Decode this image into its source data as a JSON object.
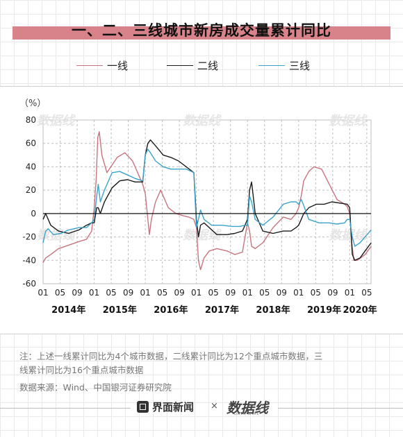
{
  "header": {
    "title": "一、二、三线城市新房成交量累计同比"
  },
  "colors": {
    "series1": "#c8737d",
    "series2": "#1a1a1a",
    "series3": "#3aa3c9",
    "title_bar": "#d8828a"
  },
  "chart_data": {
    "type": "line",
    "title": "一、二、三线城市新房成交量累计同比",
    "ylabel": "（%）",
    "ylim": [
      -60,
      80
    ],
    "yticks": [
      "80",
      "60",
      "40",
      "20",
      "0",
      "-20",
      "-40",
      "-60"
    ],
    "xlim": [
      2014.0,
      2020.4167
    ],
    "x_month_ticks": [
      "01",
      "05",
      "09",
      "01",
      "05",
      "09",
      "01",
      "05",
      "09",
      "01",
      "05",
      "09",
      "01",
      "05",
      "09",
      "01",
      "05",
      "09",
      "01",
      "05"
    ],
    "year_labels": [
      "2014年",
      "2015年",
      "2016年",
      "2017年",
      "2018年",
      "2019年",
      "2020年"
    ],
    "legend": "top",
    "grid": true,
    "series": [
      {
        "name": "一线",
        "x": [
          2014.0,
          2014.05,
          2014.15,
          2014.3,
          2014.5,
          2014.7,
          2014.85,
          2014.95,
          2015.0,
          2015.04,
          2015.07,
          2015.1,
          2015.15,
          2015.25,
          2015.45,
          2015.6,
          2015.75,
          2015.85,
          2015.95,
          2016.0,
          2016.05,
          2016.08,
          2016.12,
          2016.2,
          2016.3,
          2016.45,
          2016.6,
          2016.75,
          2016.85,
          2016.95,
          2017.0,
          2017.04,
          2017.08,
          2017.15,
          2017.25,
          2017.4,
          2017.6,
          2017.75,
          2017.9,
          2017.95,
          2018.0,
          2018.04,
          2018.08,
          2018.15,
          2018.3,
          2018.5,
          2018.7,
          2018.85,
          2018.95,
          2019.0,
          2019.05,
          2019.1,
          2019.2,
          2019.3,
          2019.45,
          2019.6,
          2019.75,
          2019.9,
          2019.95,
          2020.0,
          2020.04,
          2020.08,
          2020.15,
          2020.3,
          2020.42
        ],
        "y": [
          -42,
          -38,
          -35,
          -30,
          -27,
          -24,
          -22,
          -15,
          5,
          30,
          65,
          70,
          50,
          35,
          48,
          52,
          45,
          35,
          25,
          17,
          -5,
          -18,
          -5,
          10,
          20,
          5,
          0,
          -2,
          -3,
          -5,
          -12,
          -40,
          -48,
          -38,
          -32,
          -30,
          -32,
          -35,
          -33,
          -20,
          -8,
          -15,
          -28,
          -30,
          -25,
          -12,
          -3,
          -5,
          0,
          5,
          15,
          28,
          36,
          40,
          38,
          25,
          12,
          8,
          6,
          0,
          -25,
          -40,
          -40,
          -35,
          -28
        ]
      },
      {
        "name": "二线",
        "x": [
          2014.0,
          2014.05,
          2014.1,
          2014.15,
          2014.3,
          2014.5,
          2014.7,
          2014.85,
          2014.95,
          2015.0,
          2015.05,
          2015.08,
          2015.12,
          2015.2,
          2015.35,
          2015.5,
          2015.65,
          2015.8,
          2015.95,
          2016.0,
          2016.05,
          2016.1,
          2016.2,
          2016.35,
          2016.5,
          2016.65,
          2016.8,
          2016.95,
          2017.0,
          2017.04,
          2017.08,
          2017.15,
          2017.25,
          2017.4,
          2017.6,
          2017.75,
          2017.9,
          2017.95,
          2018.0,
          2018.04,
          2018.08,
          2018.15,
          2018.3,
          2018.5,
          2018.7,
          2018.85,
          2018.95,
          2019.0,
          2019.05,
          2019.1,
          2019.2,
          2019.35,
          2019.5,
          2019.65,
          2019.8,
          2019.95,
          2020.0,
          2020.05,
          2020.1,
          2020.2,
          2020.3,
          2020.42
        ],
        "y": [
          -5,
          0,
          -5,
          -10,
          -15,
          -17,
          -14,
          -10,
          -8,
          -8,
          5,
          5,
          0,
          10,
          22,
          28,
          29,
          27,
          27,
          50,
          60,
          63,
          58,
          50,
          48,
          45,
          40,
          35,
          -5,
          -20,
          -10,
          -8,
          -12,
          -18,
          -18,
          -17,
          -15,
          -10,
          -5,
          20,
          27,
          0,
          -15,
          -17,
          -15,
          -15,
          -12,
          -10,
          -5,
          0,
          5,
          8,
          8,
          10,
          9,
          8,
          5,
          -35,
          -40,
          -38,
          -32,
          -25
        ]
      },
      {
        "name": "三线",
        "x": [
          2014.0,
          2014.05,
          2014.1,
          2014.2,
          2014.35,
          2014.5,
          2014.7,
          2014.85,
          2014.95,
          2015.0,
          2015.05,
          2015.08,
          2015.12,
          2015.2,
          2015.35,
          2015.5,
          2015.65,
          2015.8,
          2015.95,
          2016.0,
          2016.05,
          2016.1,
          2016.2,
          2016.35,
          2016.5,
          2016.65,
          2016.8,
          2016.95,
          2017.0,
          2017.04,
          2017.08,
          2017.15,
          2017.3,
          2017.5,
          2017.7,
          2017.85,
          2017.95,
          2018.0,
          2018.04,
          2018.08,
          2018.15,
          2018.3,
          2018.5,
          2018.7,
          2018.85,
          2018.95,
          2019.0,
          2019.05,
          2019.1,
          2019.2,
          2019.4,
          2019.6,
          2019.75,
          2019.9,
          2019.95,
          2020.0,
          2020.05,
          2020.1,
          2020.2,
          2020.3,
          2020.42
        ],
        "y": [
          -25,
          -15,
          -13,
          -18,
          -17,
          -14,
          -12,
          -12,
          -8,
          -5,
          15,
          25,
          10,
          20,
          35,
          36,
          33,
          30,
          28,
          50,
          55,
          52,
          45,
          40,
          38,
          38,
          38,
          35,
          -12,
          -5,
          3,
          -5,
          -10,
          -10,
          -11,
          -11,
          -10,
          -10,
          15,
          10,
          -5,
          -10,
          -3,
          8,
          10,
          10,
          8,
          12,
          7,
          -5,
          -8,
          -8,
          -9,
          -8,
          -5,
          -5,
          -20,
          -28,
          -25,
          -20,
          -14
        ]
      }
    ]
  },
  "notes": {
    "note_line1": "注：上述一线累计同比为4个城市数据，二线累计同比为12个重点城市数据，三",
    "note_line2": "线累计同比为16个重点城市数据",
    "source": "数据来源：Wind、中国银河证券研究院"
  },
  "footer": {
    "brand": "界面新闻",
    "separator": "×"
  }
}
